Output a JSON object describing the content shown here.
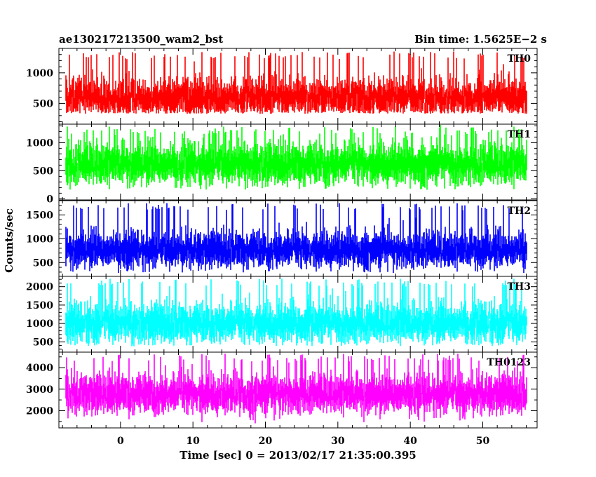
{
  "header": {
    "title": "ae130217213500_wam2_bst",
    "bin_time": "Bin time: 1.5625E−2 s"
  },
  "chart_data": {
    "type": "line",
    "title": "ae130217213500_wam2_bst",
    "xlabel": "Time [sec] 0 = 2013/02/17 21:35:00.395",
    "ylabel": "Counts/sec",
    "xlim": [
      -8.5,
      57.5
    ],
    "x_ticks": [
      0,
      10,
      20,
      30,
      40,
      50
    ],
    "x_tick_labels": [
      "0",
      "10",
      "20",
      "30",
      "40",
      "50"
    ],
    "data_x_range": [
      -7.5,
      56
    ],
    "bin_time": 0.015625,
    "grid": false,
    "panels": [
      {
        "name": "TH0",
        "color": "#ff0000",
        "ylim": [
          160,
          1400
        ],
        "ticks": [
          500,
          1000
        ],
        "tick_labels": [
          "500",
          "1000"
        ],
        "center": 590,
        "spread": 155,
        "peak": 1350,
        "floor": 330
      },
      {
        "name": "TH1",
        "color": "#00ff00",
        "ylim": [
          -20,
          1330
        ],
        "ticks": [
          0,
          500,
          1000
        ],
        "tick_labels": [
          "0",
          "500",
          "1000"
        ],
        "center": 610,
        "spread": 185,
        "peak": 1290,
        "floor": 160
      },
      {
        "name": "TH2",
        "color": "#0000ff",
        "ylim": [
          210,
          1800
        ],
        "ticks": [
          500,
          1000,
          1500
        ],
        "tick_labels": [
          "500",
          "1000",
          "1500"
        ],
        "center": 760,
        "spread": 190,
        "peak": 1750,
        "floor": 280
      },
      {
        "name": "TH3",
        "color": "#00ffff",
        "ylim": [
          220,
          2280
        ],
        "ticks": [
          500,
          1000,
          1500,
          2000
        ],
        "tick_labels": [
          "500",
          "1000",
          "1500",
          "2000"
        ],
        "center": 990,
        "spread": 270,
        "peak": 2220,
        "floor": 380
      },
      {
        "name": "TH0123",
        "color": "#ff00ff",
        "ylim": [
          1200,
          4720
        ],
        "ticks": [
          2000,
          3000,
          4000
        ],
        "tick_labels": [
          "2000",
          "3000",
          "4000"
        ],
        "center": 2750,
        "spread": 450,
        "peak": 4650,
        "floor": 1400
      }
    ]
  }
}
